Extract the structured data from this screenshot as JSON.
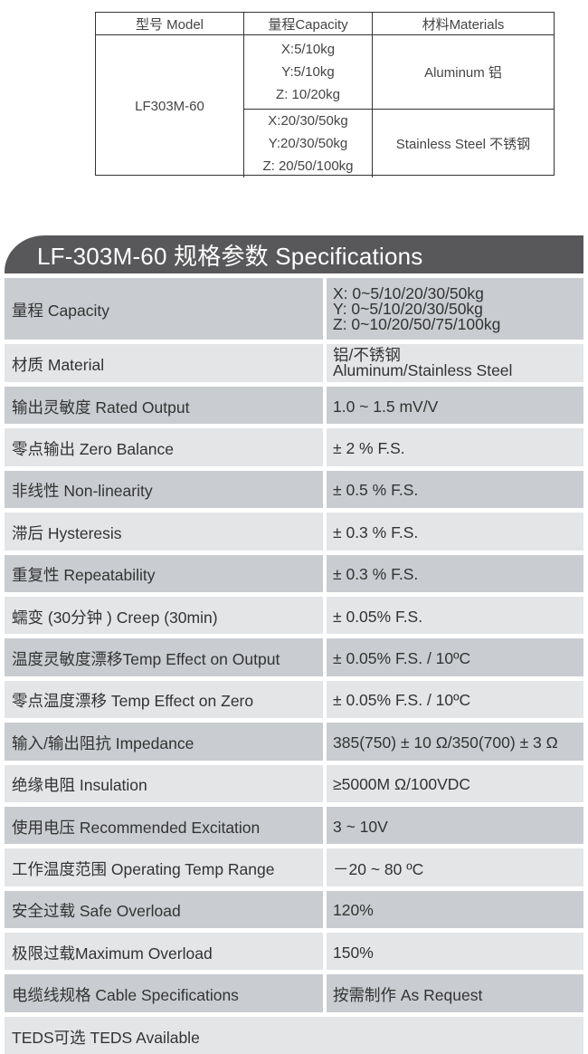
{
  "models_table": {
    "headers": [
      "型号 Model",
      "量程Capacity",
      "材料Materials"
    ],
    "model": "LF303M-60",
    "groups": [
      {
        "capacity": [
          "X:5/10kg",
          "Y:5/10kg",
          "Z: 10/20kg"
        ],
        "material": "Aluminum 铝"
      },
      {
        "capacity": [
          "X:20/30/50kg",
          "Y:20/30/50kg",
          "Z: 20/50/100kg"
        ],
        "material": "Stainless Steel 不锈钢"
      }
    ]
  },
  "specs": {
    "title": "LF-303M-60 规格参数 Specifications",
    "header_color": "#58585a",
    "row_colors": {
      "dark": "#c9ccd0",
      "light": "#e3e5e7"
    },
    "rows": [
      {
        "label": "量程 Capacity",
        "value": [
          "X: 0~5/10/20/30/50kg",
          "Y: 0~5/10/20/30/50kg",
          "Z: 0~10/20/50/75/100kg"
        ]
      },
      {
        "label": "材质 Material",
        "value": [
          "铝/不锈钢",
          "Aluminum/Stainless Steel"
        ]
      },
      {
        "label": "输出灵敏度 Rated Output",
        "value": [
          "1.0 ~ 1.5 mV/V"
        ]
      },
      {
        "label": "零点输出  Zero Balance",
        "value": [
          "± 2 % F.S."
        ]
      },
      {
        "label": "非线性 Non-linearity",
        "value": [
          "±  0.5 % F.S."
        ]
      },
      {
        "label": "滞后 Hysteresis",
        "value": [
          "±  0.3 % F.S."
        ]
      },
      {
        "label": "重复性 Repeatability",
        "value": [
          "±  0.3 % F.S."
        ]
      },
      {
        "label": "蠕变 (30分钟 ) Creep (30min)",
        "value": [
          "± 0.05% F.S."
        ]
      },
      {
        "label": "温度灵敏度漂移Temp Effect on Output",
        "value": [
          "± 0.05% F.S. / 10ºC"
        ]
      },
      {
        "label": "零点温度漂移 Temp Effect on Zero",
        "value": [
          "± 0.05% F.S. / 10ºC"
        ]
      },
      {
        "label": "输入/输出阻抗 Impedance",
        "value": [
          "385(750) ± 10 Ω/350(700) ± 3 Ω"
        ]
      },
      {
        "label": "绝缘电阻  Insulation",
        "value": [
          "≥5000M Ω/100VDC"
        ]
      },
      {
        "label": "使用电压 Recommended Excitation",
        "value": [
          "3 ~ 10V"
        ]
      },
      {
        "label": "工作温度范围 Operating Temp  Range",
        "value": [
          "－20 ~ 80 ºC"
        ]
      },
      {
        "label": "安全过载 Safe Overload",
        "value": [
          "120%"
        ]
      },
      {
        "label": "极限过载Maximum Overload",
        "value": [
          "150%"
        ]
      },
      {
        "label": "电缆线规格 Cable Specifications",
        "value": [
          "按需制作 As Request"
        ]
      },
      {
        "label": "TEDS可选 TEDS Available",
        "value": []
      }
    ]
  }
}
